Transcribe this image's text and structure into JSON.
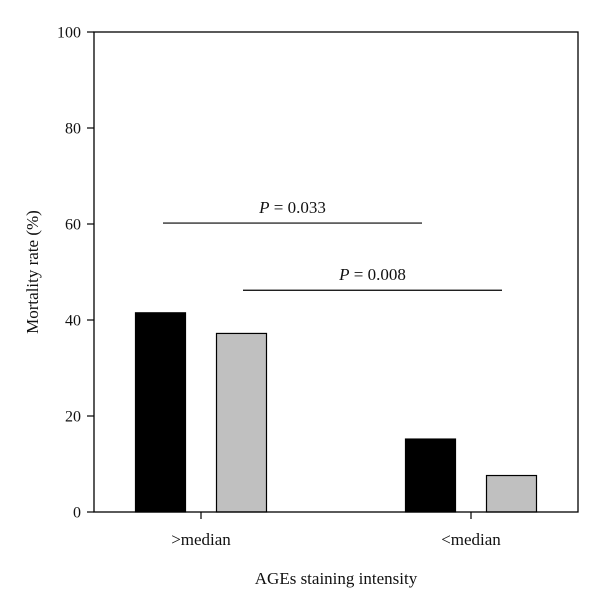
{
  "chart_data": {
    "type": "bar",
    "categories": [
      ">median",
      "<median"
    ],
    "series": [
      {
        "values": [
          41.5,
          15.2
        ],
        "color": "#000000"
      },
      {
        "values": [
          37.2,
          7.6
        ],
        "color": "#c0c0c0"
      }
    ],
    "title": "",
    "xlabel": "AGEs staining intensity",
    "ylabel": "Mortality rate (%)",
    "ylim": [
      0,
      100
    ],
    "yticks": [
      0,
      20,
      40,
      60,
      80,
      100
    ],
    "grid": false,
    "legend": "none",
    "annotations": [
      {
        "italic": "P",
        "text": " = 0.033",
        "level": 60.2,
        "from": ">median",
        "to": "<median"
      },
      {
        "italic": "P",
        "text": " = 0.008",
        "level": 46.2,
        "from": ">median",
        "to": "<median"
      }
    ]
  }
}
